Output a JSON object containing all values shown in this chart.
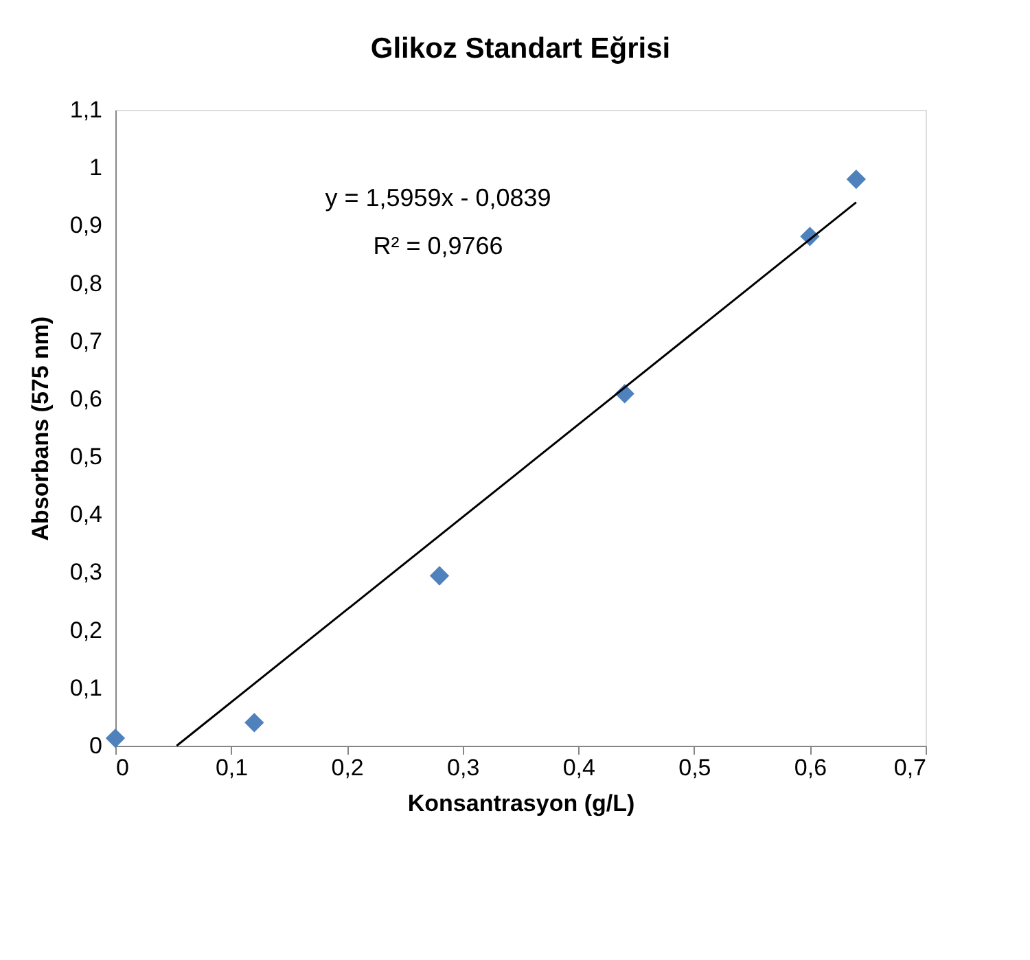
{
  "chart_data": {
    "type": "scatter",
    "title": "Glikoz Standart Eğrisi",
    "xlabel": "Konsantrasyon (g/L)",
    "ylabel": "Absorbans (575 nm)",
    "x": [
      0,
      0.12,
      0.28,
      0.44,
      0.6,
      0.64
    ],
    "series": [
      {
        "color": "#4f81bd",
        "marker": "diamond",
        "values": [
          0.013,
          0.04,
          0.294,
          0.609,
          0.881,
          0.98
        ]
      },
      {
        "type": "line",
        "color": "#000000",
        "marker": "none",
        "x": [
          0.053,
          0.64
        ],
        "values": [
          0,
          0.94
        ],
        "line_style": "solid"
      }
    ],
    "annotations": [
      "y = 1,5959x - 0,0839",
      "R² = 0,9766"
    ],
    "xlim": [
      0,
      0.7
    ],
    "ylim": [
      0,
      1.1
    ],
    "xticks": [
      0,
      {
        "value": 0.1,
        "label": "0,1"
      },
      {
        "value": 0.2,
        "label": "0,2"
      },
      {
        "value": 0.3,
        "label": "0,3"
      },
      {
        "value": 0.4,
        "label": "0,4"
      },
      {
        "value": 0.5,
        "label": "0,5"
      },
      {
        "value": 0.6,
        "label": "0,6"
      },
      {
        "value": 0.7,
        "label": "0,7"
      }
    ],
    "yticks": [
      0,
      {
        "value": 0.1,
        "label": "0,1"
      },
      {
        "value": 0.2,
        "label": "0,2"
      },
      {
        "value": 0.3,
        "label": "0,3"
      },
      {
        "value": 0.4,
        "label": "0,4"
      },
      {
        "value": 0.5,
        "label": "0,5"
      },
      {
        "value": 0.6,
        "label": "0,6"
      },
      {
        "value": 0.7,
        "label": "0,7"
      },
      {
        "value": 0.8,
        "label": "0,8"
      },
      {
        "value": 0.9,
        "label": "0,9"
      },
      1,
      {
        "value": 1.1,
        "label": "1,1"
      }
    ],
    "grid": false
  }
}
